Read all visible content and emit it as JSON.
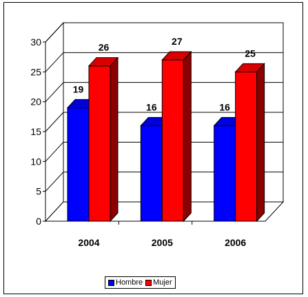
{
  "chart_data": {
    "type": "bar",
    "title": "",
    "xlabel": "",
    "ylabel": "",
    "categories": [
      "2004",
      "2005",
      "2006"
    ],
    "series": [
      {
        "name": "Hombre",
        "values": [
          19,
          16,
          16
        ],
        "color": "#0000ff"
      },
      {
        "name": "Mujer",
        "values": [
          26,
          27,
          25
        ],
        "color": "#ff0000"
      }
    ],
    "ylim": [
      0,
      30
    ],
    "yticks": [
      0,
      5,
      10,
      15,
      20,
      25,
      30
    ],
    "grid": true,
    "style": "3d",
    "legend_position": "bottom"
  }
}
